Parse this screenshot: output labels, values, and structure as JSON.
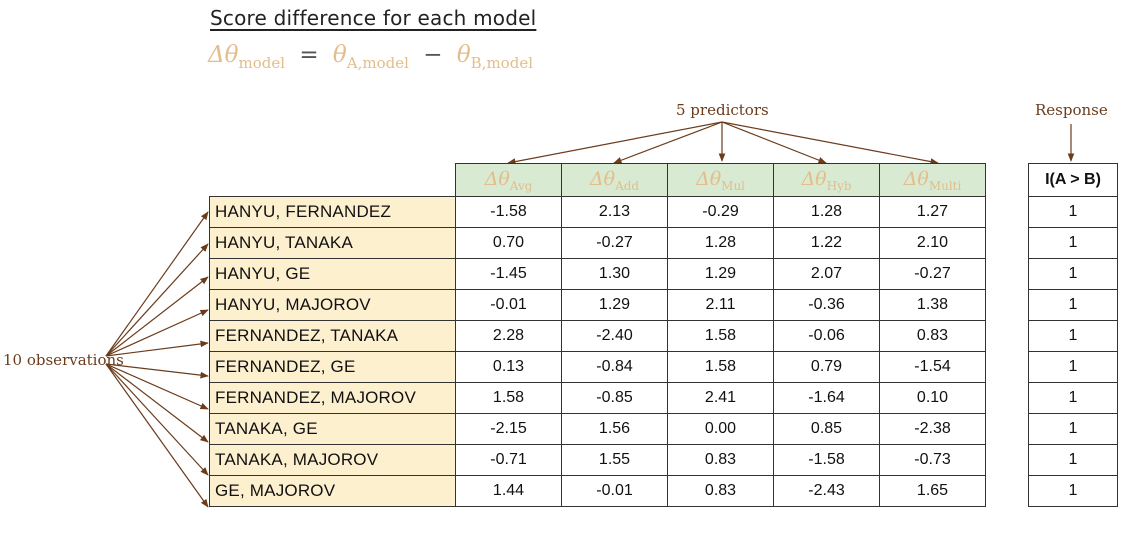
{
  "title": "Score difference for each model",
  "formula": {
    "symbol_delta_theta": "Δθ",
    "sub_model": "model",
    "equals": "=",
    "theta": "θ",
    "sub_a": "A,model",
    "minus": "−",
    "sub_b": "B,model"
  },
  "labels": {
    "predictors": "5 predictors",
    "response": "Response",
    "observations": "10 observations"
  },
  "columns": [
    {
      "symbol": "Δθ",
      "sub": "Avg"
    },
    {
      "symbol": "Δθ",
      "sub": "Add"
    },
    {
      "symbol": "Δθ",
      "sub": "Mul"
    },
    {
      "symbol": "Δθ",
      "sub": "Hyb"
    },
    {
      "symbol": "Δθ",
      "sub": "Multi"
    }
  ],
  "response_header": "I(A > B)",
  "rows": [
    {
      "name": "HANYU, FERNANDEZ",
      "values": [
        "-1.58",
        "2.13",
        "-0.29",
        "1.28",
        "1.27"
      ],
      "response": "1"
    },
    {
      "name": "HANYU, TANAKA",
      "values": [
        "0.70",
        "-0.27",
        "1.28",
        "1.22",
        "2.10"
      ],
      "response": "1"
    },
    {
      "name": "HANYU, GE",
      "values": [
        "-1.45",
        "1.30",
        "1.29",
        "2.07",
        "-0.27"
      ],
      "response": "1"
    },
    {
      "name": "HANYU, MAJOROV",
      "values": [
        "-0.01",
        "1.29",
        "2.11",
        "-0.36",
        "1.38"
      ],
      "response": "1"
    },
    {
      "name": "FERNANDEZ, TANAKA",
      "values": [
        "2.28",
        "-2.40",
        "1.58",
        "-0.06",
        "0.83"
      ],
      "response": "1"
    },
    {
      "name": "FERNANDEZ, GE",
      "values": [
        "0.13",
        "-0.84",
        "1.58",
        "0.79",
        "-1.54"
      ],
      "response": "1"
    },
    {
      "name": "FERNANDEZ, MAJOROV",
      "values": [
        "1.58",
        "-0.85",
        "2.41",
        "-1.64",
        "0.10"
      ],
      "response": "1"
    },
    {
      "name": "TANAKA, GE",
      "values": [
        "-2.15",
        "1.56",
        "0.00",
        "0.85",
        "-2.38"
      ],
      "response": "1"
    },
    {
      "name": "TANAKA, MAJOROV",
      "values": [
        "-0.71",
        "1.55",
        "0.83",
        "-1.58",
        "-0.73"
      ],
      "response": "1"
    },
    {
      "name": "GE, MAJOROV",
      "values": [
        "1.44",
        "-0.01",
        "0.83",
        "-2.43",
        "1.65"
      ],
      "response": "1"
    }
  ],
  "colors": {
    "name_column_bg": "#fdf0cf",
    "header_bg": "#d9ead3",
    "formula_text": "#e3bd8a",
    "arrow": "#6b3c1c"
  }
}
